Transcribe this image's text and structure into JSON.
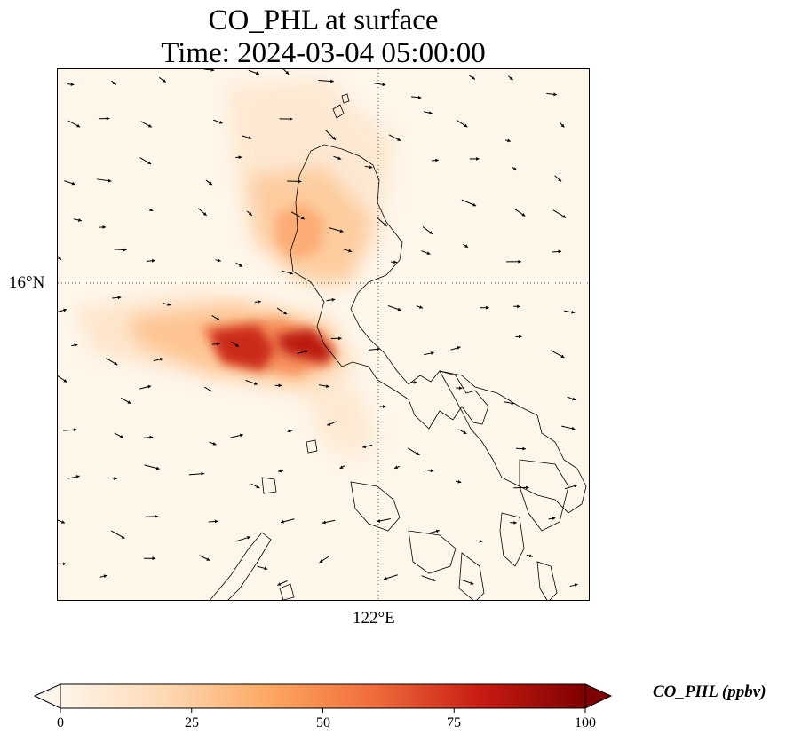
{
  "title": {
    "line1": "CO_PHL at surface",
    "line2": "Time: 2024-03-04 05:00:00"
  },
  "map": {
    "lat_tick_label": "16°N",
    "lon_tick_label": "122°E",
    "field_colors": [
      "#fff5eb",
      "#fdd9b4",
      "#fda761",
      "#f06b3a",
      "#c81b13",
      "#7f0000"
    ]
  },
  "colorbar": {
    "label": "CO_PHL (ppbv)",
    "ticks": [
      "0",
      "25",
      "50",
      "75",
      "100"
    ],
    "range": [
      0,
      100
    ],
    "extend": "both"
  }
}
